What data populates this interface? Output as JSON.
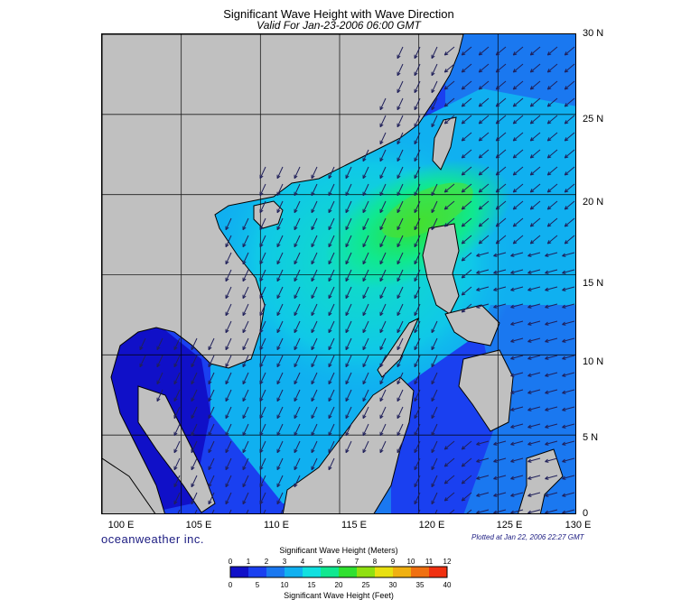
{
  "header": {
    "title": "Significant Wave Height with Wave Direction",
    "subtitle": "Valid For Jan-23-2006 06:00 GMT"
  },
  "map": {
    "lat_labels": [
      "30 N",
      "25 N",
      "20 N",
      "15 N",
      "10 N",
      "5 N",
      "0"
    ],
    "lon_labels": [
      "100 E",
      "105 E",
      "110 E",
      "115 E",
      "120 E",
      "125 E",
      "130 E"
    ],
    "land_color": "#c0c0c0",
    "coast_color": "#000000",
    "arrow_color": "#20205a",
    "arrow_direction": "toward southwest"
  },
  "footer": {
    "brand": "oceanweather inc.",
    "plotted": "Plotted at Jan 22, 2006 22:27 GMT"
  },
  "legend": {
    "title_meters": "Significant Wave Height (Meters)",
    "title_feet": "Significant Wave Height (Feet)",
    "meters_ticks": [
      "0",
      "1",
      "2",
      "3",
      "4",
      "5",
      "6",
      "7",
      "8",
      "9",
      "10",
      "11",
      "12"
    ],
    "feet_ticks": [
      "0",
      "5",
      "10",
      "15",
      "20",
      "25",
      "30",
      "35",
      "40"
    ],
    "colors": [
      "#1010c8",
      "#1a40f0",
      "#1a78f0",
      "#10b0f0",
      "#10e0e0",
      "#10e890",
      "#30e030",
      "#90e010",
      "#e8e010",
      "#f0b010",
      "#f07010",
      "#f03010"
    ]
  }
}
